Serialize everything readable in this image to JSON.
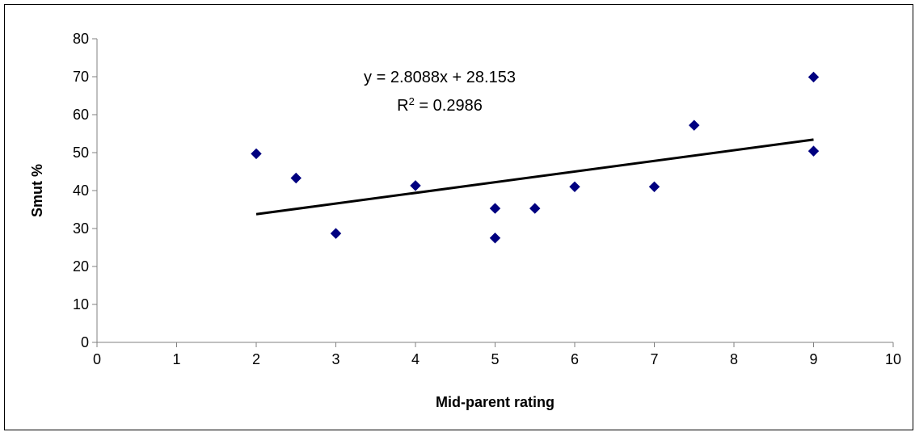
{
  "chart_data": {
    "type": "scatter",
    "title": "",
    "xlabel": "Mid-parent rating",
    "ylabel": "Smut %",
    "xlim": [
      0,
      10
    ],
    "ylim": [
      0,
      80
    ],
    "x_ticks": [
      0,
      1,
      2,
      3,
      4,
      5,
      6,
      7,
      8,
      9,
      10
    ],
    "y_ticks": [
      0,
      10,
      20,
      30,
      40,
      50,
      60,
      70,
      80
    ],
    "grid": false,
    "legend": "none",
    "point_color": "#000080",
    "points": [
      {
        "x": 2,
        "y": 49.7
      },
      {
        "x": 2.5,
        "y": 43.3
      },
      {
        "x": 3,
        "y": 28.7
      },
      {
        "x": 4,
        "y": 41.3
      },
      {
        "x": 5,
        "y": 35.3
      },
      {
        "x": 5,
        "y": 27.5
      },
      {
        "x": 5.5,
        "y": 35.3
      },
      {
        "x": 6,
        "y": 41.0
      },
      {
        "x": 7,
        "y": 41.0
      },
      {
        "x": 7.5,
        "y": 57.2
      },
      {
        "x": 9,
        "y": 69.9
      },
      {
        "x": 9,
        "y": 50.4
      }
    ],
    "trendline": {
      "slope": 2.8088,
      "intercept": 28.153,
      "x_range": [
        2,
        9
      ],
      "equation_label": "y = 2.8088x + 28.153",
      "r2_prefix": "R",
      "r2_superscript": "2",
      "r2_value": " = 0.2986"
    }
  }
}
